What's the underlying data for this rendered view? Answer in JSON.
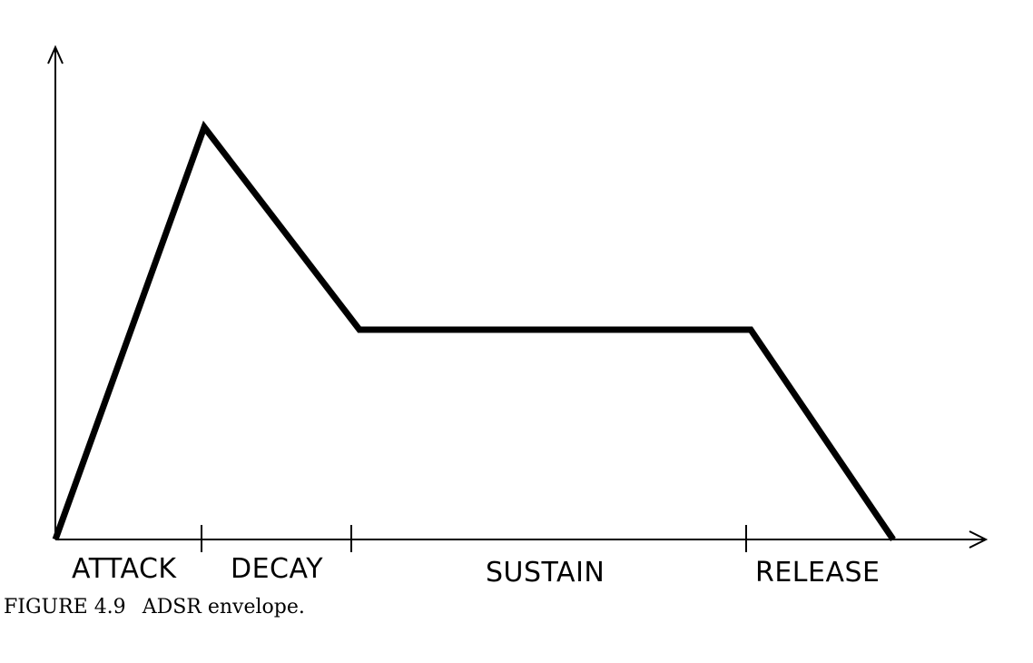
{
  "figure": {
    "number": "FIGURE 4.9",
    "caption": "ADSR envelope."
  },
  "envelope": {
    "phases": [
      "ATTACK",
      "DECAY",
      "SUSTAIN",
      "RELEASE"
    ]
  },
  "colors": {
    "line": "#000000",
    "background": "#ffffff"
  }
}
